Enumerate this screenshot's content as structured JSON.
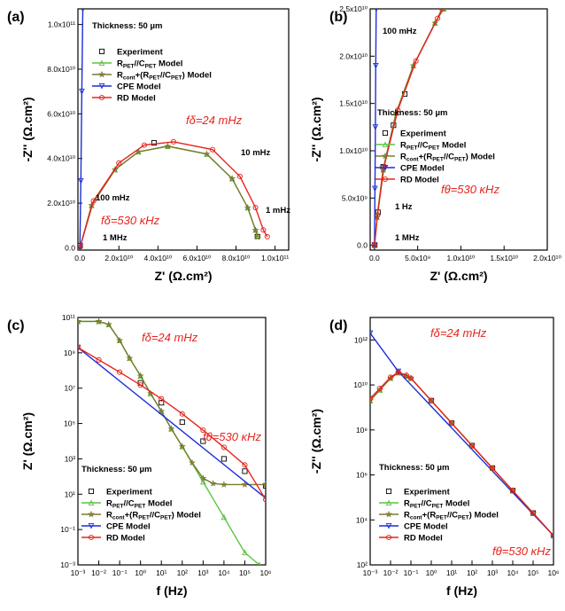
{
  "figure": {
    "legend_labels": {
      "experiment": "Experiment",
      "rpet": "R PET//C PET Model",
      "rcont": "Rcont+(RPET//CPET) Model",
      "cpe": "CPE Model",
      "rd": "RD Model"
    },
    "colors": {
      "experiment": "#000000",
      "rpet": "#5cc244",
      "rcont": "#7a7a30",
      "cpe": "#1b2fd6",
      "rd": "#e8231c",
      "annotation": "#e8231c"
    }
  },
  "chart_data": [
    {
      "panel": "(a)",
      "type": "line",
      "xlabel": "Z' (Ω.cm²)",
      "ylabel": "-Z'' (Ω.cm²)",
      "xlim": [
        -1000000000.0,
        107000000000.0
      ],
      "ylim": [
        -1000000000.0,
        107000000000.0
      ],
      "xticks": [
        "0.0",
        "2.0x10¹⁰",
        "4.0x10¹⁰",
        "6.0x10¹⁰",
        "8.0x10¹⁰",
        "1.0x10¹¹"
      ],
      "yticks": [
        "0.0",
        "2.0x10¹⁰",
        "4.0x10¹⁰",
        "6.0x10¹⁰",
        "8.0x10¹⁰",
        "1.0x10¹¹"
      ],
      "thickness": "Thickness: 50 µm",
      "annotations": [
        "100 mHz",
        "10 mHz",
        "1 mHz",
        "1 MHz",
        "fδ=24 mHz",
        "fδ=530 κHz"
      ],
      "series": [
        {
          "name": "Experiment",
          "x": [
            100000000.0,
            38000000000.0,
            91000000000.0
          ],
          "y": [
            1000000000.0,
            47000000000.0,
            5000000000.0
          ]
        },
        {
          "name": "RPET//CPET Model",
          "x": [
            0,
            6000000000.0,
            18000000000.0,
            30000000000.0,
            45000000000.0,
            65000000000.0,
            78000000000.0,
            86000000000.0,
            90000000000.0,
            91000000000.0
          ],
          "y": [
            0,
            19000000000.0,
            35000000000.0,
            43000000000.0,
            45500000000.0,
            42000000000.0,
            31000000000.0,
            18000000000.0,
            8000000000.0,
            5000000000.0
          ]
        },
        {
          "name": "Rcont+(RPET//CPET) Model",
          "x": [
            0,
            6000000000.0,
            18000000000.0,
            30000000000.0,
            45000000000.0,
            65000000000.0,
            78000000000.0,
            86000000000.0,
            90000000000.0,
            91000000000.0
          ],
          "y": [
            0,
            19000000000.0,
            35000000000.0,
            43000000000.0,
            45500000000.0,
            42000000000.0,
            31000000000.0,
            18000000000.0,
            8000000000.0,
            5000000000.0
          ]
        },
        {
          "name": "CPE Model",
          "x": [
            0,
            500000000.0,
            1000000000.0,
            1500000000.0
          ],
          "y": [
            0,
            30000000000.0,
            70000000000.0,
            107000000000.0
          ]
        },
        {
          "name": "RD Model",
          "x": [
            0,
            7000000000.0,
            20000000000.0,
            33000000000.0,
            48000000000.0,
            68000000000.0,
            82000000000.0,
            90000000000.0,
            94000000000.0,
            96000000000.0
          ],
          "y": [
            0,
            21000000000.0,
            38000000000.0,
            46000000000.0,
            47500000000.0,
            44000000000.0,
            32000000000.0,
            18000000000.0,
            8000000000.0,
            5000000000.0
          ]
        }
      ]
    },
    {
      "panel": "(b)",
      "type": "line",
      "xlabel": "Z' (Ω.cm²)",
      "ylabel": "-Z'' (Ω.cm²)",
      "xlim": [
        -500000000.0,
        20000000000.0
      ],
      "ylim": [
        -500000000.0,
        25000000000.0
      ],
      "xticks": [
        "0.0",
        "5.0x10⁹",
        "1.0x10¹⁰",
        "1.5x10¹⁰",
        "2.0x10¹⁰"
      ],
      "yticks": [
        "0.0",
        "5.0x10⁹",
        "1.0x10¹⁰",
        "1.5x10¹⁰",
        "2.0x10¹⁰",
        "2.5x10¹⁰"
      ],
      "thickness": "Thickness: 50 µm",
      "annotations": [
        "100 mHz",
        "1 Hz",
        "1 MHz",
        "fθ=530 κHz"
      ],
      "series": [
        {
          "name": "Experiment",
          "x": [
            30000000.0,
            400000000.0,
            1000000000.0,
            2200000000.0,
            3500000000.0
          ],
          "y": [
            30000000.0,
            3500000000.0,
            8300000000.0,
            12700000000.0,
            16000000000.0
          ]
        },
        {
          "name": "RPET//CPET Model",
          "x": [
            0,
            300000000.0,
            1000000000.0,
            2500000000.0,
            4500000000.0,
            7000000000.0,
            8000000000.0
          ],
          "y": [
            0,
            3000000000.0,
            8000000000.0,
            14000000000.0,
            19000000000.0,
            23500000000.0,
            25000000000.0
          ]
        },
        {
          "name": "Rcont+(RPET//CPET) Model",
          "x": [
            0,
            300000000.0,
            1000000000.0,
            2500000000.0,
            4500000000.0,
            7000000000.0,
            8000000000.0
          ],
          "y": [
            0,
            3000000000.0,
            8000000000.0,
            14000000000.0,
            19000000000.0,
            23500000000.0,
            25000000000.0
          ]
        },
        {
          "name": "CPE Model",
          "x": [
            0,
            50000000.0,
            100000000.0,
            150000000.0,
            200000000.0
          ],
          "y": [
            0,
            6000000000.0,
            12500000000.0,
            19000000000.0,
            25000000000.0
          ]
        },
        {
          "name": "RD Model",
          "x": [
            0,
            350000000.0,
            1100000000.0,
            2700000000.0,
            4800000000.0,
            7300000000.0,
            7800000000.0
          ],
          "y": [
            0,
            3200000000.0,
            8300000000.0,
            14300000000.0,
            19500000000.0,
            24000000000.0,
            25000000000.0
          ]
        }
      ]
    },
    {
      "panel": "(c)",
      "type": "line",
      "xlabel": "f (Hz)",
      "ylabel": "Z' (Ω.cm²)",
      "xscale": "log",
      "yscale": "log",
      "xlim": [
        0.001,
        1000000
      ],
      "ylim": [
        0.001,
        100000000000
      ],
      "xticks": [
        "10⁻³",
        "10⁻²",
        "10⁻¹",
        "10⁰",
        "10¹",
        "10²",
        "10³",
        "10⁴",
        "10⁵",
        "10⁶"
      ],
      "yticks": [
        "10⁻³",
        "10⁻¹",
        "10¹",
        "10³",
        "10⁵",
        "10⁷",
        "10⁹",
        "10¹¹"
      ],
      "thickness": "Thickness: 50 µm",
      "annotations": [
        "fδ=24 mHz",
        "fθ=530 κHz"
      ],
      "series": [
        {
          "name": "Experiment",
          "x": [
            1,
            10,
            100,
            1000,
            10000,
            100000,
            1000000
          ],
          "y": [
            20000000.0,
            1500000.0,
            120000.0,
            10000.0,
            1000,
            200,
            30
          ]
        },
        {
          "name": "RPET//CPET Model",
          "x": [
            0.001,
            0.01,
            0.03,
            0.1,
            0.3,
            1,
            3,
            10,
            30,
            100,
            1000,
            10000,
            100000,
            500000
          ],
          "y": [
            60000000000.0,
            60000000000.0,
            40000000000.0,
            5000000000.0,
            500000000.0,
            50000000.0,
            5000000.0,
            500000.0,
            50000.0,
            5000.0,
            50,
            0.5,
            0.005,
            0.001
          ]
        },
        {
          "name": "Rcont+(RPET//CPET) Model",
          "x": [
            0.001,
            0.01,
            0.03,
            0.1,
            0.3,
            1,
            3,
            10,
            30,
            100,
            300,
            1000,
            3000,
            10000,
            100000,
            1000000
          ],
          "y": [
            60000000000.0,
            60000000000.0,
            40000000000.0,
            5000000000.0,
            500000000.0,
            50000000.0,
            5000000.0,
            500000.0,
            50000.0,
            5000.0,
            600,
            80,
            40,
            35,
            35,
            35
          ]
        },
        {
          "name": "CPE Model",
          "x": [
            0.001,
            1000000
          ],
          "y": [
            2000000000.0,
            6
          ]
        },
        {
          "name": "RD Model",
          "x": [
            0.001,
            0.01,
            0.1,
            1,
            10,
            100,
            1000,
            10000,
            100000,
            1000000
          ],
          "y": [
            2000000000.0,
            400000000.0,
            80000000.0,
            15000000.0,
            2500000.0,
            350000.0,
            42000.0,
            4500.0,
            450,
            5
          ]
        }
      ]
    },
    {
      "panel": "(d)",
      "type": "line",
      "xlabel": "f (Hz)",
      "ylabel": "-Z'' (Ω.cm²)",
      "xscale": "log",
      "yscale": "log",
      "xlim": [
        0.001,
        1000000
      ],
      "ylim": [
        100,
        10000000000000
      ],
      "xticks": [
        "10⁻³",
        "10⁻²",
        "10⁻¹",
        "10⁰",
        "10¹",
        "10²",
        "10³",
        "10⁴",
        "10⁵",
        "10⁶"
      ],
      "yticks": [
        "10²",
        "10⁴",
        "10⁶",
        "10⁸",
        "10¹⁰",
        "10¹²"
      ],
      "thickness": "Thickness: 50 µm",
      "annotations": [
        "fδ=24 mHz",
        "fθ=530 κHz"
      ],
      "series": [
        {
          "name": "Experiment",
          "x": [
            1,
            10,
            100,
            1000,
            10000,
            100000,
            1000000
          ],
          "y": [
            2000000000.0,
            200000000.0,
            20000000.0,
            2000000.0,
            200000.0,
            20000.0,
            2000.0
          ]
        },
        {
          "name": "RPET//CPET Model",
          "x": [
            0.001,
            0.003,
            0.01,
            0.024,
            0.06,
            0.1,
            1,
            10,
            100,
            1000,
            10000,
            100000,
            1000000
          ],
          "y": [
            2000000000.0,
            6000000000.0,
            20000000000.0,
            35000000000.0,
            25000000000.0,
            20000000000.0,
            2000000000.0,
            200000000.0,
            20000000.0,
            2000000.0,
            200000.0,
            20000.0,
            2000.0
          ]
        },
        {
          "name": "Rcont+(RPET//CPET) Model",
          "x": [
            0.001,
            0.003,
            0.01,
            0.024,
            0.06,
            0.1,
            1,
            10,
            100,
            1000,
            10000,
            100000,
            1000000
          ],
          "y": [
            2000000000.0,
            6000000000.0,
            20000000000.0,
            35000000000.0,
            25000000000.0,
            20000000000.0,
            2000000000.0,
            200000000.0,
            20000000.0,
            2000000.0,
            200000.0,
            20000.0,
            2000.0
          ]
        },
        {
          "name": "CPE Model",
          "x": [
            0.001,
            0.024,
            1000000
          ],
          "y": [
            2000000000000.0,
            40000000000.0,
            2000.0
          ]
        },
        {
          "name": "RD Model",
          "x": [
            0.001,
            0.003,
            0.01,
            0.024,
            0.06,
            0.1,
            1,
            10,
            100,
            1000,
            10000,
            100000,
            1000000
          ],
          "y": [
            2500000000.0,
            7000000000.0,
            22000000000.0,
            37000000000.0,
            27000000000.0,
            20000000000.0,
            2000000000.0,
            200000000.0,
            20000000.0,
            2000000.0,
            200000.0,
            20000.0,
            2000.0
          ]
        }
      ]
    }
  ]
}
